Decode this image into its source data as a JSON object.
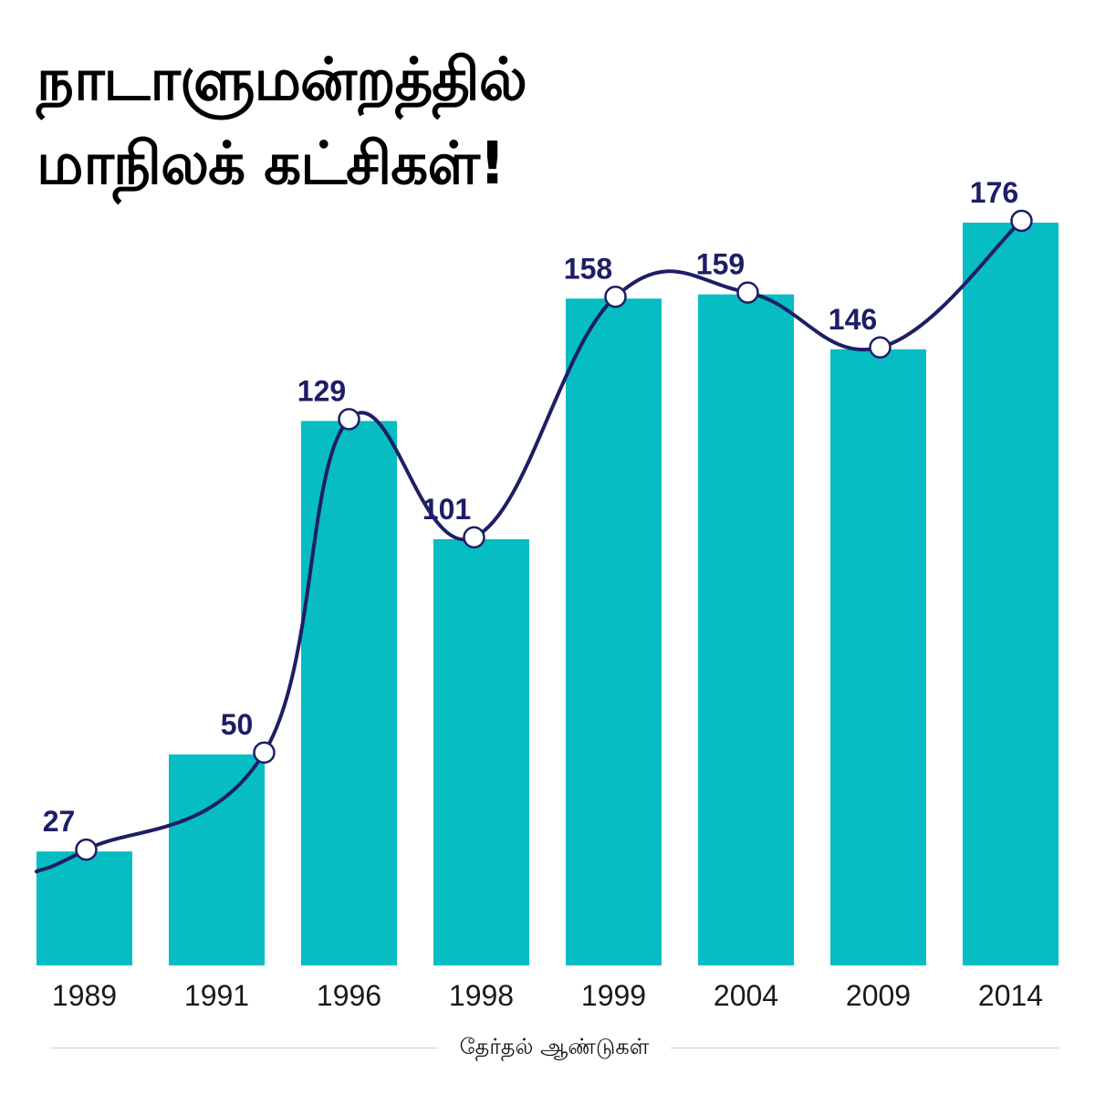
{
  "title": {
    "line1": "நாடாளுமன்றத்தில்",
    "line2": "மாநிலக் கட்சிகள்!"
  },
  "colors": {
    "bar": "#05BDC3",
    "line": "#1E1E66",
    "marker_fill": "#FFFFFF",
    "label": "#1E1E66"
  },
  "chart_data": {
    "type": "bar",
    "categories": [
      "1989",
      "1991",
      "1996",
      "1998",
      "1999",
      "2004",
      "2009",
      "2014"
    ],
    "values": [
      27,
      50,
      129,
      101,
      158,
      159,
      146,
      176
    ],
    "data_labels": [
      "27",
      "50",
      "129",
      "101",
      "158",
      "159",
      "146",
      "176"
    ],
    "overlay": "smooth-line",
    "title": "நாடாளுமன்றத்தில் மாநிலக் கட்சிகள்!",
    "xlabel": "தேர்தல் ஆண்டுகள்",
    "ylabel": "",
    "ylim": [
      0,
      180
    ],
    "grid": false,
    "legend": "none"
  }
}
